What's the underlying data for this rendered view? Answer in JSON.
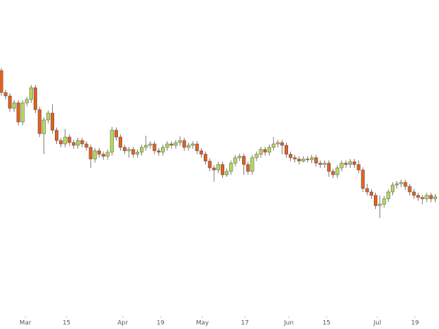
{
  "chart_data": {
    "type": "candlestick",
    "up_color": "#b5d95a",
    "down_color": "#e2611f",
    "xlim": [
      -0.32,
      102.9
    ],
    "ylim": [
      0,
      480
    ],
    "xticks": [
      {
        "value": 5.65,
        "label": "Mar"
      },
      {
        "value": 15.32,
        "label": "15"
      },
      {
        "value": 28.55,
        "label": "Apr"
      },
      {
        "value": 37.42,
        "label": "19"
      },
      {
        "value": 47.26,
        "label": "May"
      },
      {
        "value": 57.26,
        "label": "17"
      },
      {
        "value": 67.58,
        "label": "Jun"
      },
      {
        "value": 76.45,
        "label": "15"
      },
      {
        "value": 88.39,
        "label": "Jul"
      },
      {
        "value": 97.26,
        "label": "19"
      }
    ],
    "ohlc": [
      [
        377,
        381,
        340,
        345
      ],
      [
        345,
        349,
        335,
        340
      ],
      [
        340,
        344,
        317,
        322
      ],
      [
        322,
        334,
        317,
        330
      ],
      [
        330,
        334,
        297,
        302
      ],
      [
        302,
        334,
        297,
        330
      ],
      [
        330,
        339,
        325,
        335
      ],
      [
        335,
        356,
        330,
        352
      ],
      [
        352,
        356,
        315,
        320
      ],
      [
        320,
        324,
        280,
        285
      ],
      [
        285,
        309,
        255,
        305
      ],
      [
        305,
        319,
        300,
        315
      ],
      [
        315,
        328,
        285,
        290
      ],
      [
        290,
        294,
        270,
        275
      ],
      [
        275,
        279,
        265,
        270
      ],
      [
        270,
        292,
        265,
        280
      ],
      [
        280,
        284,
        267,
        272
      ],
      [
        272,
        276,
        263,
        268
      ],
      [
        268,
        279,
        263,
        275
      ],
      [
        275,
        279,
        265,
        270
      ],
      [
        270,
        274,
        260,
        265
      ],
      [
        265,
        269,
        235,
        248
      ],
      [
        248,
        264,
        243,
        260
      ],
      [
        260,
        264,
        250,
        255
      ],
      [
        255,
        259,
        247,
        252
      ],
      [
        252,
        262,
        247,
        258
      ],
      [
        258,
        295,
        253,
        290
      ],
      [
        290,
        294,
        275,
        280
      ],
      [
        280,
        284,
        260,
        265
      ],
      [
        265,
        269,
        255,
        260
      ],
      [
        260,
        266,
        250,
        262
      ],
      [
        262,
        266,
        250,
        255
      ],
      [
        255,
        262,
        250,
        258
      ],
      [
        258,
        269,
        253,
        265
      ],
      [
        265,
        282,
        260,
        268
      ],
      [
        268,
        274,
        263,
        270
      ],
      [
        270,
        274,
        255,
        260
      ],
      [
        260,
        264,
        253,
        258
      ],
      [
        258,
        269,
        253,
        265
      ],
      [
        265,
        274,
        260,
        270
      ],
      [
        270,
        274,
        263,
        268
      ],
      [
        268,
        276,
        263,
        272
      ],
      [
        272,
        281,
        267,
        275
      ],
      [
        275,
        279,
        260,
        265
      ],
      [
        265,
        272,
        260,
        268
      ],
      [
        268,
        274,
        263,
        270
      ],
      [
        270,
        274,
        255,
        260
      ],
      [
        260,
        264,
        250,
        255
      ],
      [
        255,
        259,
        240,
        245
      ],
      [
        245,
        249,
        230,
        235
      ],
      [
        235,
        239,
        215,
        232
      ],
      [
        232,
        244,
        227,
        240
      ],
      [
        240,
        244,
        220,
        225
      ],
      [
        225,
        234,
        222,
        230
      ],
      [
        230,
        246,
        225,
        242
      ],
      [
        242,
        254,
        237,
        250
      ],
      [
        250,
        256,
        245,
        252
      ],
      [
        252,
        256,
        225,
        240
      ],
      [
        240,
        244,
        225,
        230
      ],
      [
        230,
        254,
        225,
        250
      ],
      [
        250,
        259,
        245,
        255
      ],
      [
        255,
        266,
        250,
        262
      ],
      [
        262,
        266,
        253,
        258
      ],
      [
        258,
        269,
        253,
        265
      ],
      [
        265,
        280,
        260,
        270
      ],
      [
        270,
        276,
        265,
        272
      ],
      [
        272,
        276,
        255,
        268
      ],
      [
        268,
        272,
        250,
        255
      ],
      [
        255,
        259,
        245,
        250
      ],
      [
        250,
        254,
        243,
        248
      ],
      [
        248,
        252,
        240,
        245
      ],
      [
        245,
        252,
        243,
        248
      ],
      [
        248,
        252,
        243,
        247
      ],
      [
        247,
        254,
        242,
        250
      ],
      [
        250,
        254,
        237,
        242
      ],
      [
        242,
        246,
        235,
        240
      ],
      [
        240,
        246,
        235,
        242
      ],
      [
        242,
        246,
        222,
        230
      ],
      [
        230,
        234,
        220,
        225
      ],
      [
        225,
        239,
        220,
        235
      ],
      [
        235,
        246,
        230,
        242
      ],
      [
        242,
        246,
        235,
        240
      ],
      [
        240,
        248,
        235,
        244
      ],
      [
        244,
        248,
        235,
        240
      ],
      [
        240,
        246,
        227,
        232
      ],
      [
        232,
        236,
        200,
        205
      ],
      [
        205,
        212,
        195,
        200
      ],
      [
        200,
        204,
        190,
        195
      ],
      [
        195,
        199,
        175,
        180
      ],
      [
        180,
        195,
        162,
        182
      ],
      [
        182,
        194,
        177,
        190
      ],
      [
        190,
        204,
        185,
        200
      ],
      [
        200,
        214,
        195,
        210
      ],
      [
        210,
        216,
        205,
        212
      ],
      [
        212,
        218,
        207,
        214
      ],
      [
        214,
        218,
        203,
        208
      ],
      [
        208,
        212,
        195,
        200
      ],
      [
        200,
        204,
        190,
        195
      ],
      [
        195,
        199,
        187,
        192
      ],
      [
        192,
        196,
        182,
        190
      ],
      [
        190,
        199,
        185,
        195
      ],
      [
        195,
        199,
        185,
        190
      ],
      [
        190,
        197,
        185,
        193
      ]
    ]
  }
}
